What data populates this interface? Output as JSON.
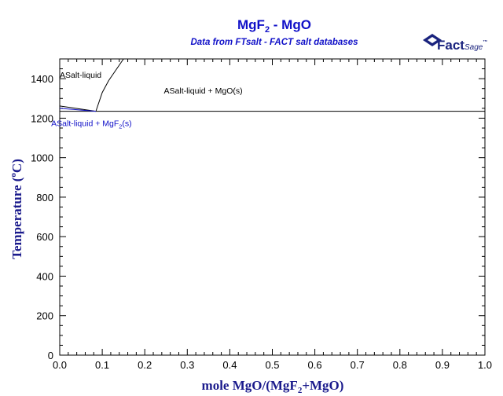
{
  "chart_data": {
    "type": "phase-diagram",
    "title_main": "MgF",
    "title_sub": "2",
    "title_tail": " - MgO",
    "subtitle": "Data from FTsalt - FACT salt databases",
    "xlabel_main": "mole MgO/(MgF",
    "xlabel_sub": "2",
    "xlabel_tail": "+MgO)",
    "ylabel_main": "Temperature (",
    "ylabel_sup": "o",
    "ylabel_tail": "C)",
    "xlim": [
      0,
      1
    ],
    "ylim": [
      0,
      1500
    ],
    "x_ticks": [
      0.0,
      0.1,
      0.2,
      0.3,
      0.4,
      0.5,
      0.6,
      0.7,
      0.8,
      0.9,
      1.0
    ],
    "x_tick_labels": [
      "0.0",
      "0.1",
      "0.2",
      "0.3",
      "0.4",
      "0.5",
      "0.6",
      "0.7",
      "0.8",
      "0.9",
      "1.0"
    ],
    "y_ticks": [
      0,
      200,
      400,
      600,
      800,
      1000,
      1200,
      1400
    ],
    "y_tick_labels": [
      "0",
      "200",
      "400",
      "600",
      "800",
      "1000",
      "1200",
      "1400"
    ],
    "lines": [
      {
        "name": "liquidus-mgo",
        "color": "#000000",
        "points": [
          [
            0.085,
            1235
          ],
          [
            0.1,
            1330
          ],
          [
            0.115,
            1390
          ],
          [
            0.15,
            1500
          ]
        ]
      },
      {
        "name": "eutectic-isotherm",
        "color": "#000000",
        "points": [
          [
            0.0,
            1235
          ],
          [
            1.0,
            1235
          ]
        ]
      },
      {
        "name": "liquidus-mgf2-upper",
        "color": "#000000",
        "points": [
          [
            0.0,
            1262
          ],
          [
            0.085,
            1235
          ]
        ]
      },
      {
        "name": "liquidus-mgf2-lower",
        "color": "#1010c8",
        "points": [
          [
            0.0,
            1250
          ],
          [
            0.085,
            1235
          ]
        ]
      }
    ],
    "region_labels": [
      {
        "text_main": "ASalt-liquid",
        "x": 0.0,
        "y": 1405,
        "color": "#000000"
      },
      {
        "text_main": "ASalt-liquid + MgO(s)",
        "x": 0.245,
        "y": 1325,
        "color": "#000000"
      },
      {
        "text_main": "ASalt-liquid + MgF",
        "text_sub": "2",
        "text_tail": "(s)",
        "x": -0.02,
        "y": 1160,
        "color": "#1010c8"
      }
    ]
  },
  "logo": {
    "text": "Fact",
    "text2": "Sage",
    "tm": "™",
    "color": "#1a237e"
  }
}
